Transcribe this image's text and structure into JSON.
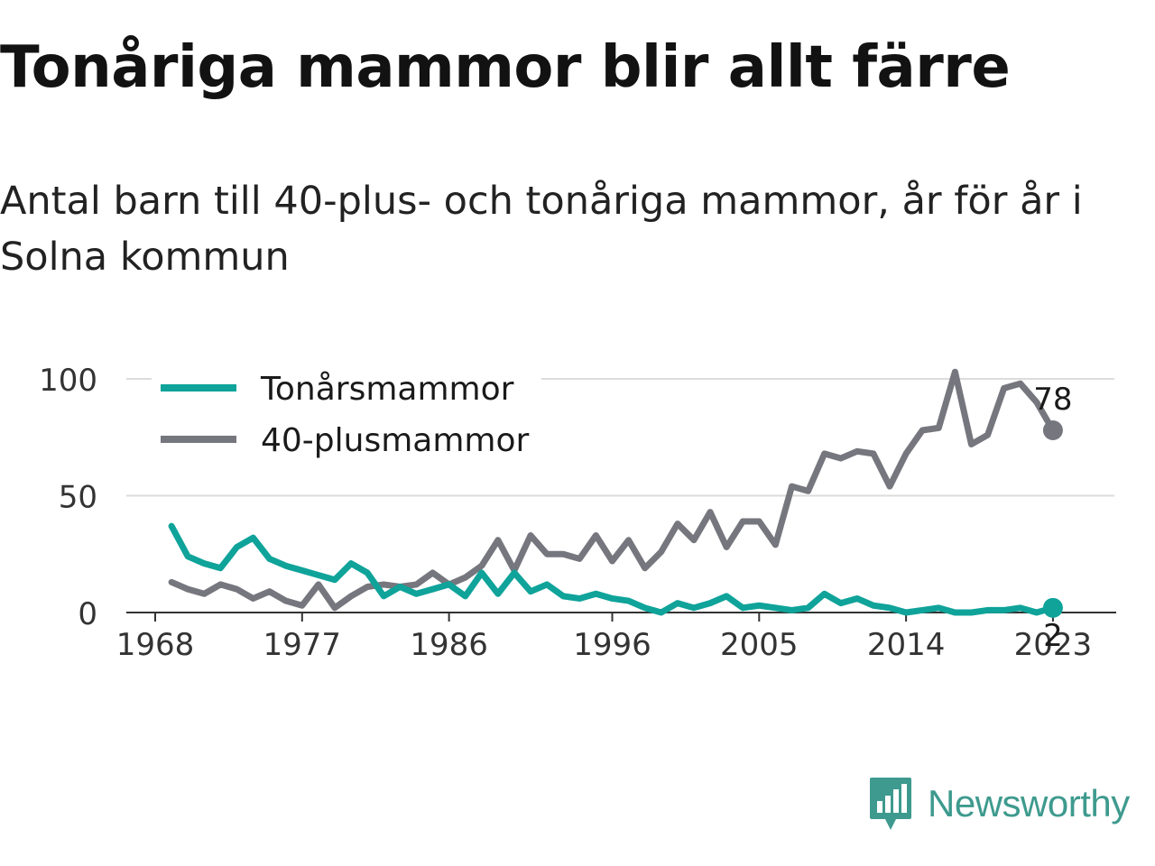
{
  "title": "Tonåriga mammor blir allt färre",
  "subtitle": "Antal barn till 40-plus- och tonåriga mammor, år för år i Solna kommun",
  "brand": {
    "name": "Newsworthy",
    "color": "#3e9a8e",
    "icon": "bar-chart-speech-bubble-icon"
  },
  "chart_data": {
    "type": "line",
    "x": [
      1969,
      1970,
      1971,
      1972,
      1973,
      1974,
      1975,
      1976,
      1977,
      1978,
      1979,
      1980,
      1981,
      1982,
      1983,
      1984,
      1985,
      1986,
      1987,
      1988,
      1989,
      1990,
      1991,
      1992,
      1993,
      1994,
      1995,
      1996,
      1997,
      1998,
      1999,
      2000,
      2001,
      2002,
      2003,
      2004,
      2005,
      2006,
      2007,
      2008,
      2009,
      2010,
      2011,
      2012,
      2013,
      2014,
      2015,
      2016,
      2017,
      2018,
      2019,
      2020,
      2021,
      2022,
      2023
    ],
    "series": [
      {
        "name": "Tonårsmammor",
        "color": "#0fa39a",
        "values": [
          37,
          24,
          21,
          19,
          28,
          32,
          23,
          20,
          18,
          16,
          14,
          21,
          17,
          7,
          11,
          8,
          10,
          12,
          7,
          17,
          8,
          17,
          9,
          12,
          7,
          6,
          8,
          6,
          5,
          2,
          0,
          4,
          2,
          4,
          7,
          2,
          3,
          2,
          1,
          2,
          8,
          4,
          6,
          3,
          2,
          0,
          1,
          2,
          0,
          0,
          1,
          1,
          2,
          0,
          2
        ],
        "end_label": "2"
      },
      {
        "name": "40-plusmammor",
        "color": "#76767e",
        "values": [
          13,
          10,
          8,
          12,
          10,
          6,
          9,
          5,
          3,
          12,
          2,
          7,
          11,
          12,
          11,
          12,
          17,
          12,
          15,
          20,
          31,
          18,
          33,
          25,
          25,
          23,
          33,
          22,
          31,
          19,
          26,
          38,
          31,
          43,
          28,
          39,
          39,
          29,
          54,
          52,
          68,
          66,
          69,
          68,
          54,
          68,
          78,
          79,
          103,
          72,
          76,
          96,
          98,
          90,
          78
        ],
        "end_label": "78"
      }
    ],
    "xticks": [
      1968,
      1977,
      1986,
      1996,
      2005,
      2014,
      2023
    ],
    "yticks": [
      0,
      50,
      100
    ],
    "xlim": [
      1968,
      2024
    ],
    "ylim": [
      0,
      105
    ],
    "grid": true,
    "legend": "top-left"
  }
}
